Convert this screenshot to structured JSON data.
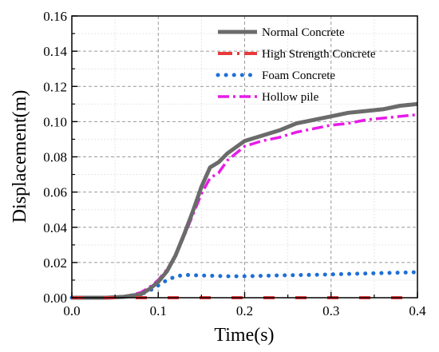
{
  "chart_data": {
    "type": "line",
    "xlabel": "Time(s)",
    "ylabel": "Displacement(m)",
    "xlim": [
      0.0,
      0.4
    ],
    "ylim": [
      0.0,
      0.16
    ],
    "xticks": [
      "0.0",
      "0.1",
      "0.2",
      "0.3",
      "0.4"
    ],
    "yticks": [
      "0.00",
      "0.02",
      "0.04",
      "0.06",
      "0.08",
      "0.10",
      "0.12",
      "0.14",
      "0.16"
    ],
    "grid": true,
    "legend_position": "top-right",
    "series": [
      {
        "name": "Normal Concrete",
        "color": "#6b6b6b",
        "style": "solid",
        "x": [
          0.0,
          0.04,
          0.06,
          0.08,
          0.09,
          0.1,
          0.11,
          0.12,
          0.13,
          0.14,
          0.15,
          0.16,
          0.17,
          0.18,
          0.2,
          0.22,
          0.24,
          0.26,
          0.28,
          0.3,
          0.32,
          0.34,
          0.36,
          0.38,
          0.4
        ],
        "y": [
          0.0,
          0.0,
          0.0005,
          0.002,
          0.005,
          0.009,
          0.015,
          0.024,
          0.036,
          0.049,
          0.063,
          0.074,
          0.077,
          0.082,
          0.089,
          0.092,
          0.095,
          0.099,
          0.101,
          0.103,
          0.105,
          0.106,
          0.107,
          0.109,
          0.11
        ]
      },
      {
        "name": "High Strength Concrete",
        "color": "#e83a3a",
        "style": "dash-dot",
        "x": [
          0.0,
          0.1,
          0.2,
          0.3,
          0.4
        ],
        "y": [
          0.0,
          0.0,
          0.0,
          0.0,
          0.0
        ]
      },
      {
        "name": "Foam Concrete",
        "color": "#1f6fd6",
        "style": "dotted",
        "x": [
          0.0,
          0.04,
          0.06,
          0.08,
          0.09,
          0.1,
          0.11,
          0.12,
          0.13,
          0.14,
          0.16,
          0.18,
          0.2,
          0.24,
          0.28,
          0.32,
          0.36,
          0.4
        ],
        "y": [
          0.0,
          0.0,
          0.0005,
          0.002,
          0.004,
          0.007,
          0.01,
          0.012,
          0.013,
          0.0128,
          0.0125,
          0.0122,
          0.0122,
          0.0127,
          0.013,
          0.0135,
          0.014,
          0.0145
        ]
      },
      {
        "name": "Hollow pile",
        "color": "#e81be8",
        "style": "dash-dot",
        "x": [
          0.0,
          0.04,
          0.06,
          0.08,
          0.09,
          0.1,
          0.11,
          0.12,
          0.13,
          0.14,
          0.15,
          0.16,
          0.17,
          0.18,
          0.2,
          0.22,
          0.24,
          0.26,
          0.28,
          0.3,
          0.32,
          0.34,
          0.36,
          0.38,
          0.4
        ],
        "y": [
          0.0,
          0.0,
          0.0005,
          0.003,
          0.006,
          0.01,
          0.016,
          0.024,
          0.035,
          0.047,
          0.059,
          0.068,
          0.071,
          0.078,
          0.086,
          0.089,
          0.091,
          0.094,
          0.096,
          0.098,
          0.099,
          0.101,
          0.102,
          0.103,
          0.104
        ]
      }
    ]
  }
}
